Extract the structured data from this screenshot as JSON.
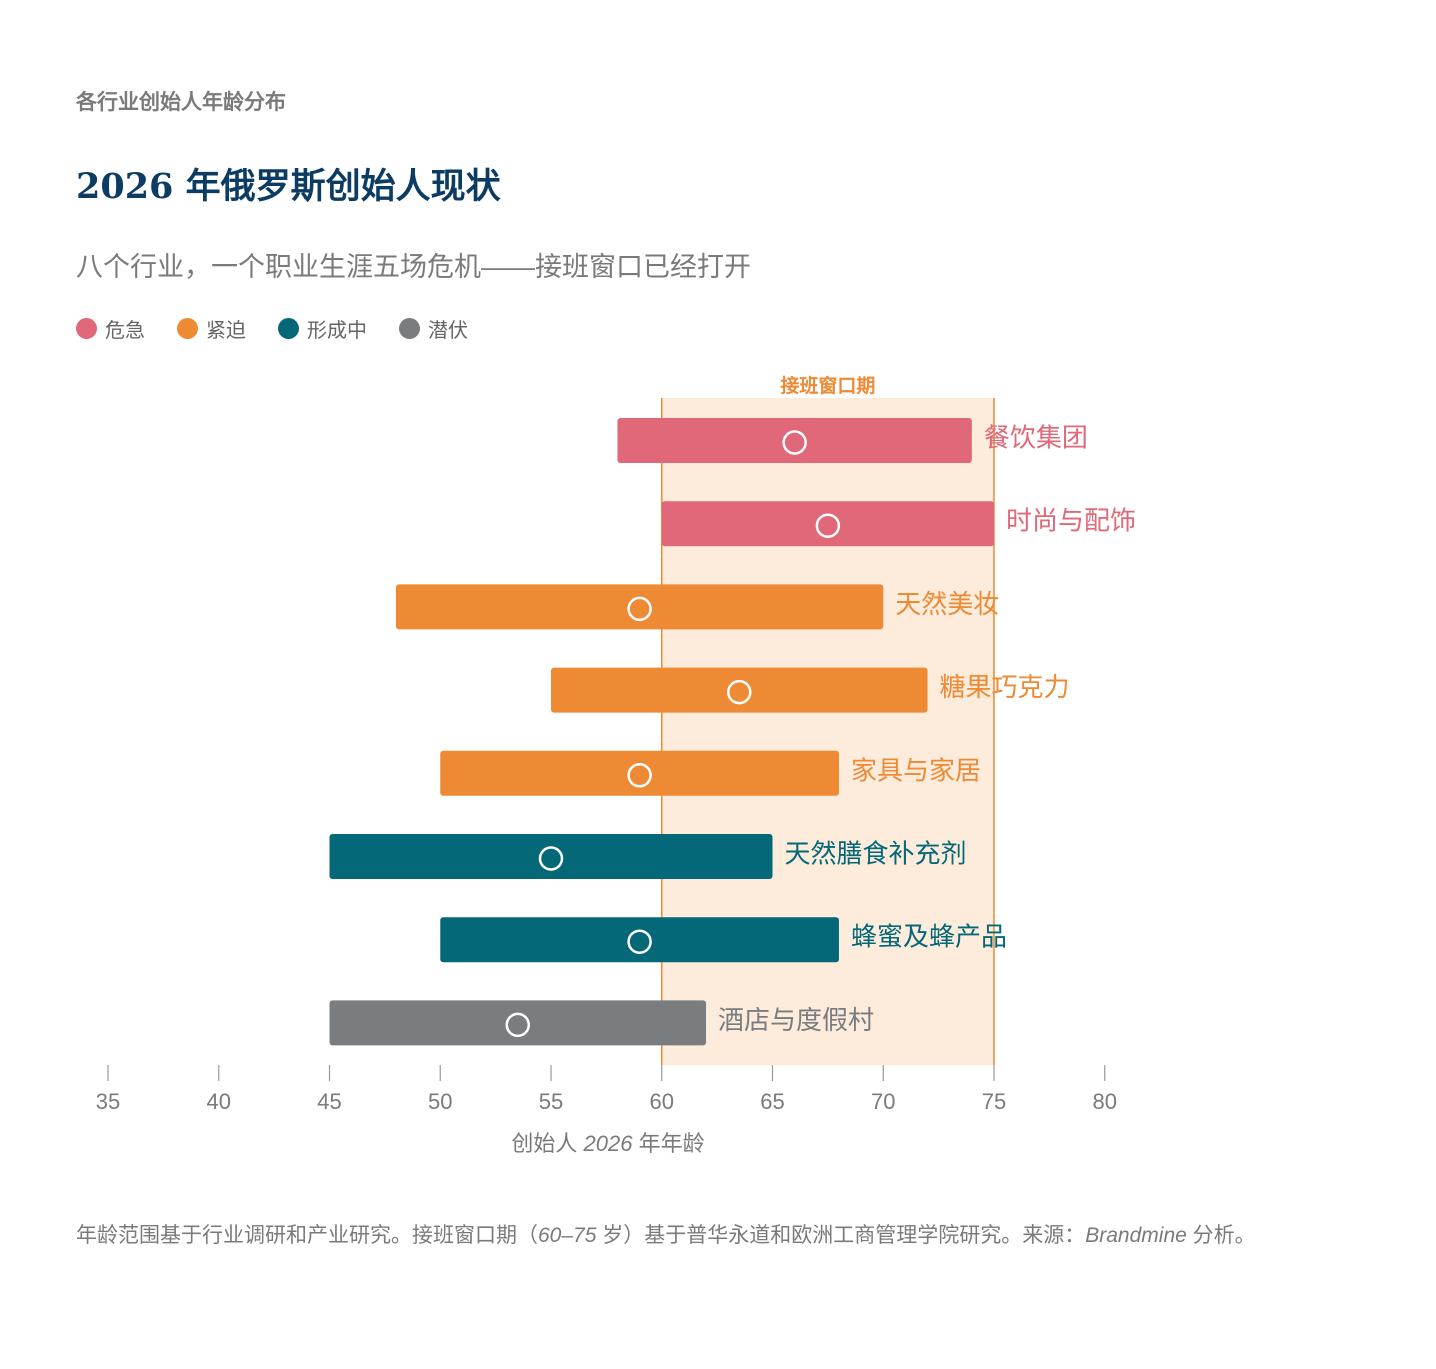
{
  "header": {
    "kicker": "各行业创始人年龄分布",
    "title": "2026 年俄罗斯创始人现状",
    "subtitle": "八个行业，一个职业生涯五场危机——接班窗口已经打开"
  },
  "legend": [
    {
      "label": "危急",
      "color": "#e06878"
    },
    {
      "label": "紧迫",
      "color": "#ee8a34"
    },
    {
      "label": "形成中",
      "color": "#046878"
    },
    {
      "label": "潜伏",
      "color": "#7a7d80"
    }
  ],
  "chart_data": {
    "type": "bar",
    "orientation": "horizontal-range",
    "xlabel_pre": "创始人 ",
    "xlabel_year": "2026",
    "xlabel_post": " 年年龄",
    "xlim": [
      35,
      80
    ],
    "xticks": [
      35,
      40,
      45,
      50,
      55,
      60,
      65,
      70,
      75,
      80
    ],
    "band": {
      "label": "接班窗口期",
      "from": 60,
      "to": 75
    },
    "series": [
      {
        "name": "餐饮集团",
        "min": 58,
        "max": 74,
        "marker": 66,
        "status": "危急",
        "color": "#e06878"
      },
      {
        "name": "时尚与配饰",
        "min": 60,
        "max": 75,
        "marker": 67.5,
        "status": "危急",
        "color": "#e06878"
      },
      {
        "name": "天然美妆",
        "min": 48,
        "max": 70,
        "marker": 59,
        "status": "紧迫",
        "color": "#ee8a34"
      },
      {
        "name": "糖果巧克力",
        "min": 55,
        "max": 72,
        "marker": 63.5,
        "status": "紧迫",
        "color": "#ee8a34"
      },
      {
        "name": "家具与家居",
        "min": 50,
        "max": 68,
        "marker": 59,
        "status": "紧迫",
        "color": "#ee8a34"
      },
      {
        "name": "天然膳食补充剂",
        "min": 45,
        "max": 65,
        "marker": 55,
        "status": "形成中",
        "color": "#046878"
      },
      {
        "name": "蜂蜜及蜂产品",
        "min": 50,
        "max": 68,
        "marker": 59,
        "status": "形成中",
        "color": "#046878"
      },
      {
        "name": "酒店与度假村",
        "min": 45,
        "max": 62,
        "marker": 53.5,
        "status": "潜伏",
        "color": "#7a7d80"
      }
    ]
  },
  "footnote": {
    "part1": "年龄范围基于行业调研和产业研究。接班窗口期（",
    "range": "60–75",
    "part2": " 岁）基于普华永道和欧洲工商管理学院研究。来源：",
    "source": "Brandmine",
    "part3": " 分析。"
  }
}
